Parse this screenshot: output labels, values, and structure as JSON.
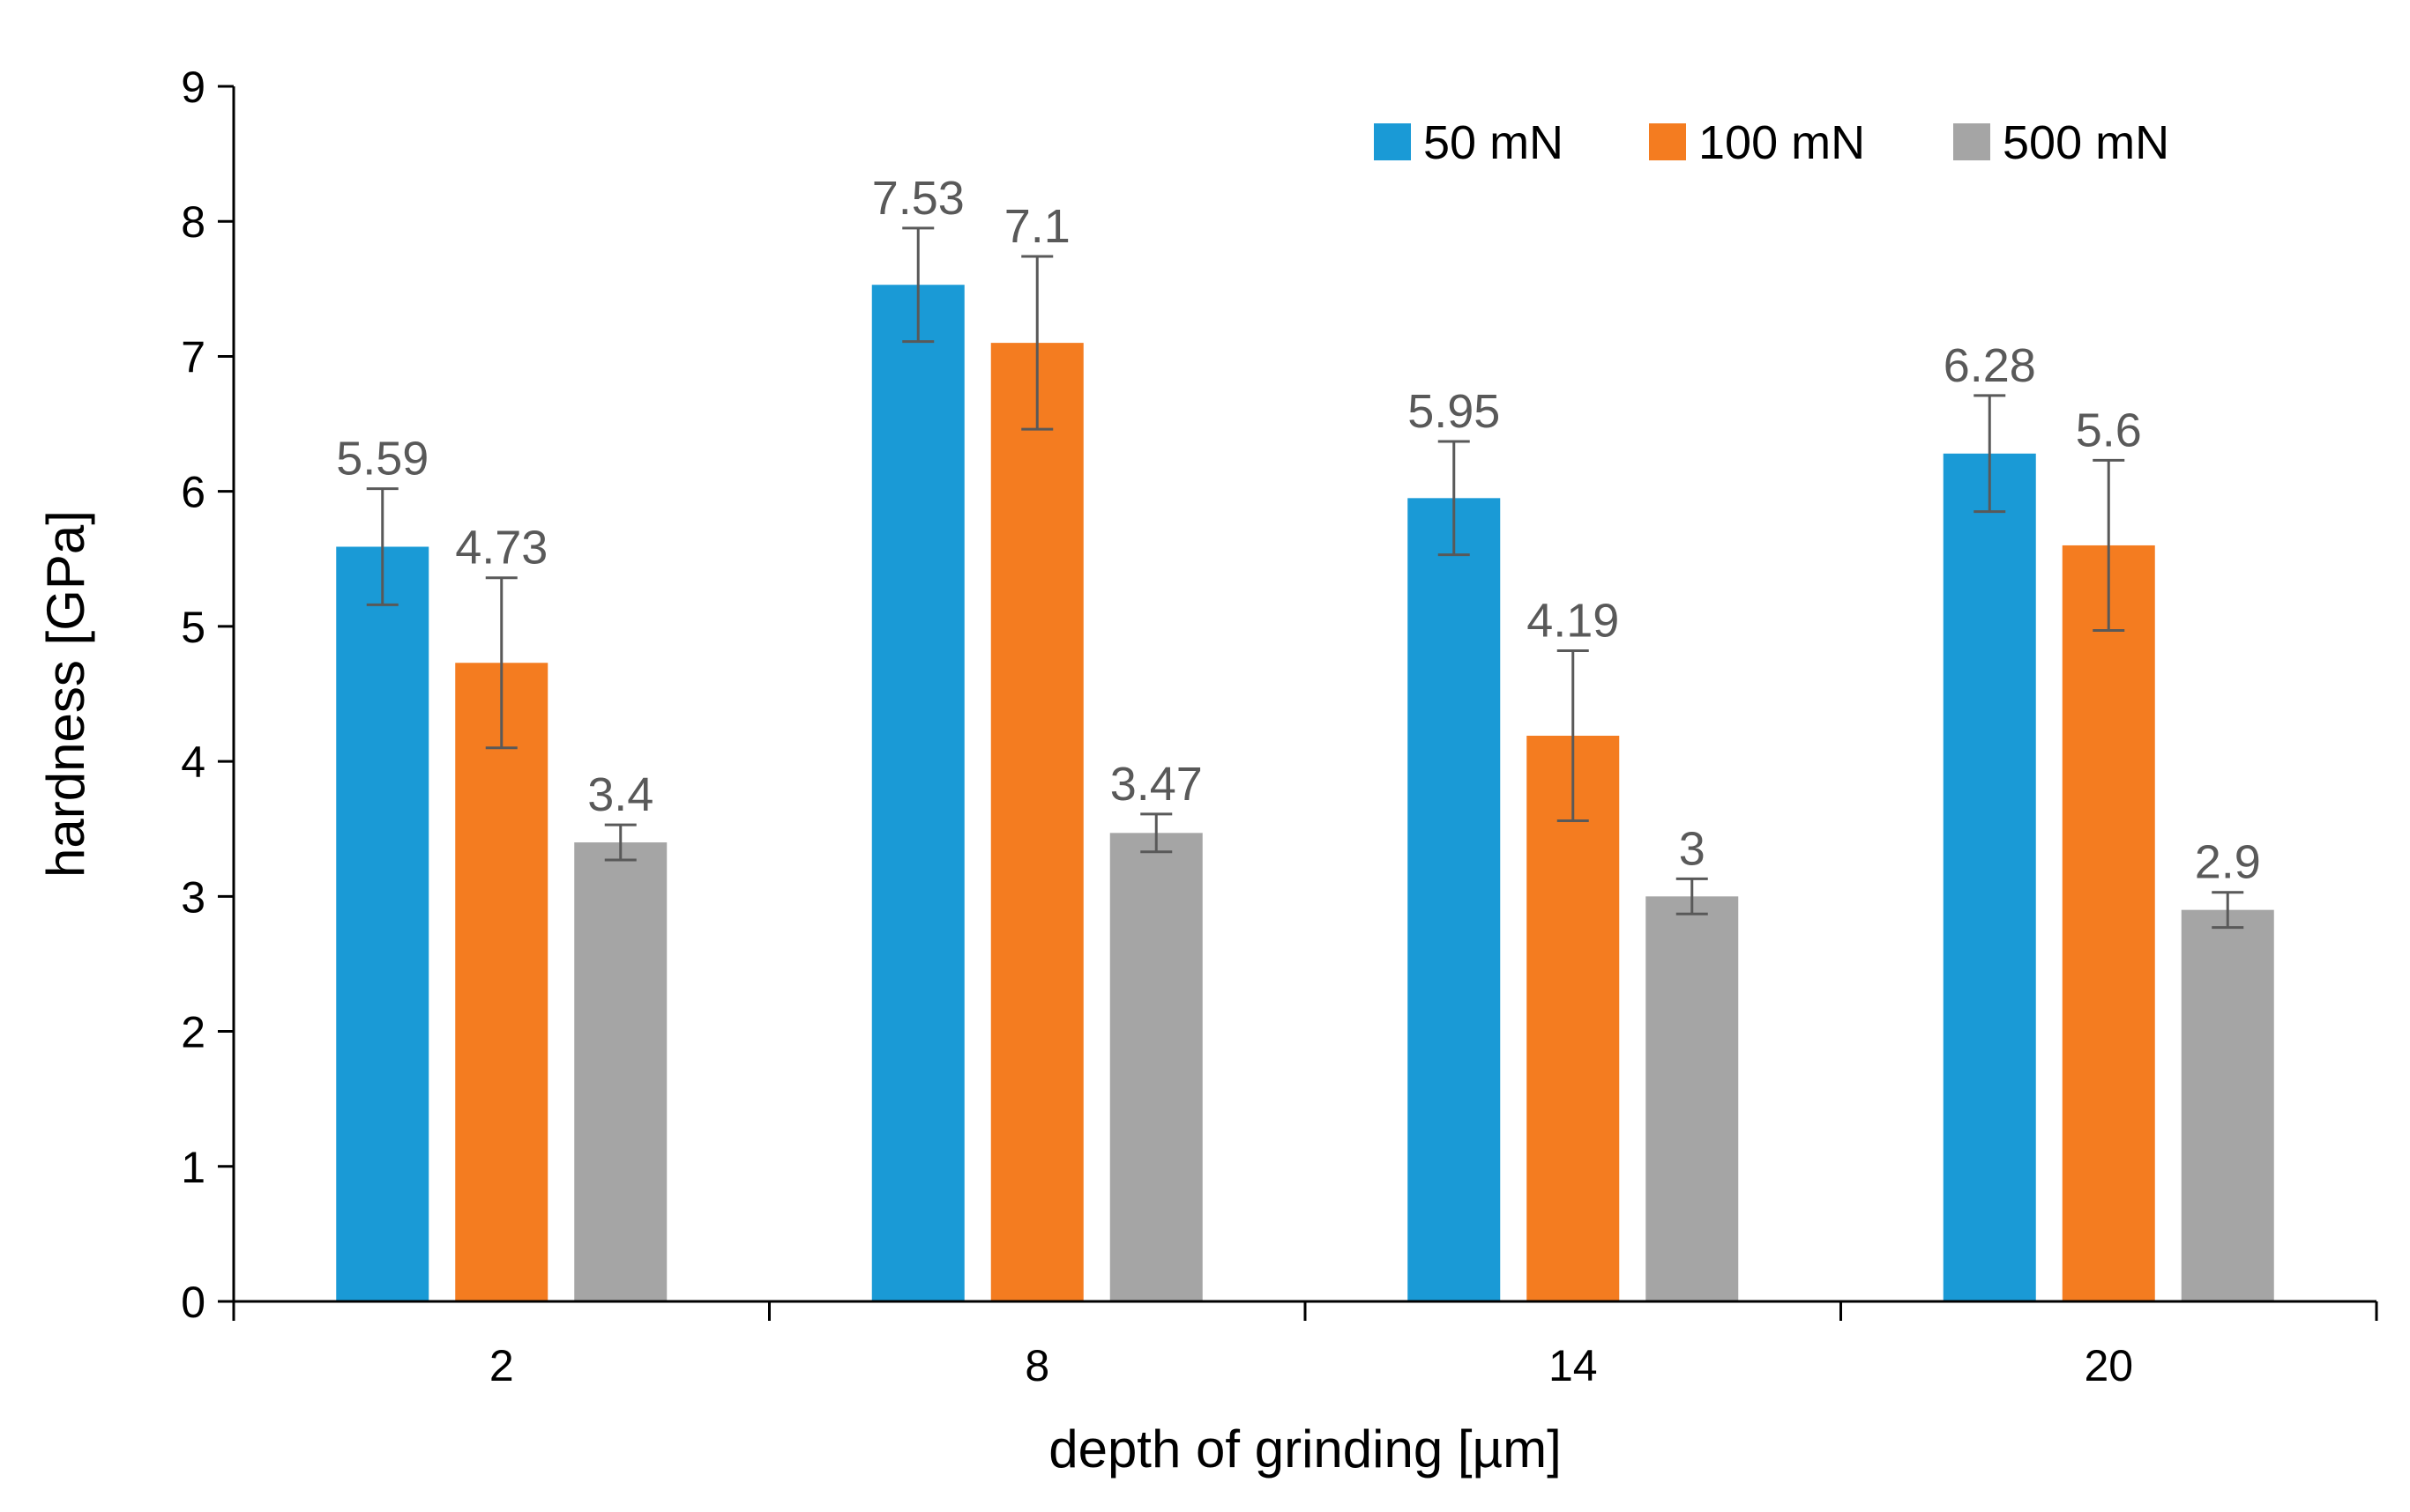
{
  "chart_data": {
    "type": "bar",
    "title": "",
    "xlabel": "depth of grinding   [µm]",
    "ylabel": "hardness   [GPa]",
    "ylim": [
      0,
      9
    ],
    "yticks": [
      "0",
      "1",
      "2",
      "3",
      "4",
      "5",
      "6",
      "7",
      "8",
      "9"
    ],
    "categories": [
      "2",
      "8",
      "14",
      "20"
    ],
    "legend_position": "top-right",
    "grid": false,
    "series": [
      {
        "name": "50 mN",
        "color": "#1a9ad6",
        "values": [
          5.59,
          7.53,
          5.95,
          6.28
        ],
        "labels": [
          "5.59",
          "7.53",
          "5.95",
          "6.28"
        ],
        "errors": [
          0.43,
          0.42,
          0.42,
          0.43
        ]
      },
      {
        "name": "100 mN",
        "color": "#f47c20",
        "values": [
          4.73,
          7.1,
          4.19,
          5.6
        ],
        "labels": [
          "4.73",
          "7.1",
          "4.19",
          "5.6"
        ],
        "errors": [
          0.63,
          0.64,
          0.63,
          0.63
        ]
      },
      {
        "name": "500 mN",
        "color": "#a5a5a5",
        "values": [
          3.4,
          3.47,
          3.0,
          2.9
        ],
        "labels": [
          "3.4",
          "3.47",
          "3",
          "2.9"
        ],
        "errors": [
          0.13,
          0.14,
          0.13,
          0.13
        ]
      }
    ]
  }
}
